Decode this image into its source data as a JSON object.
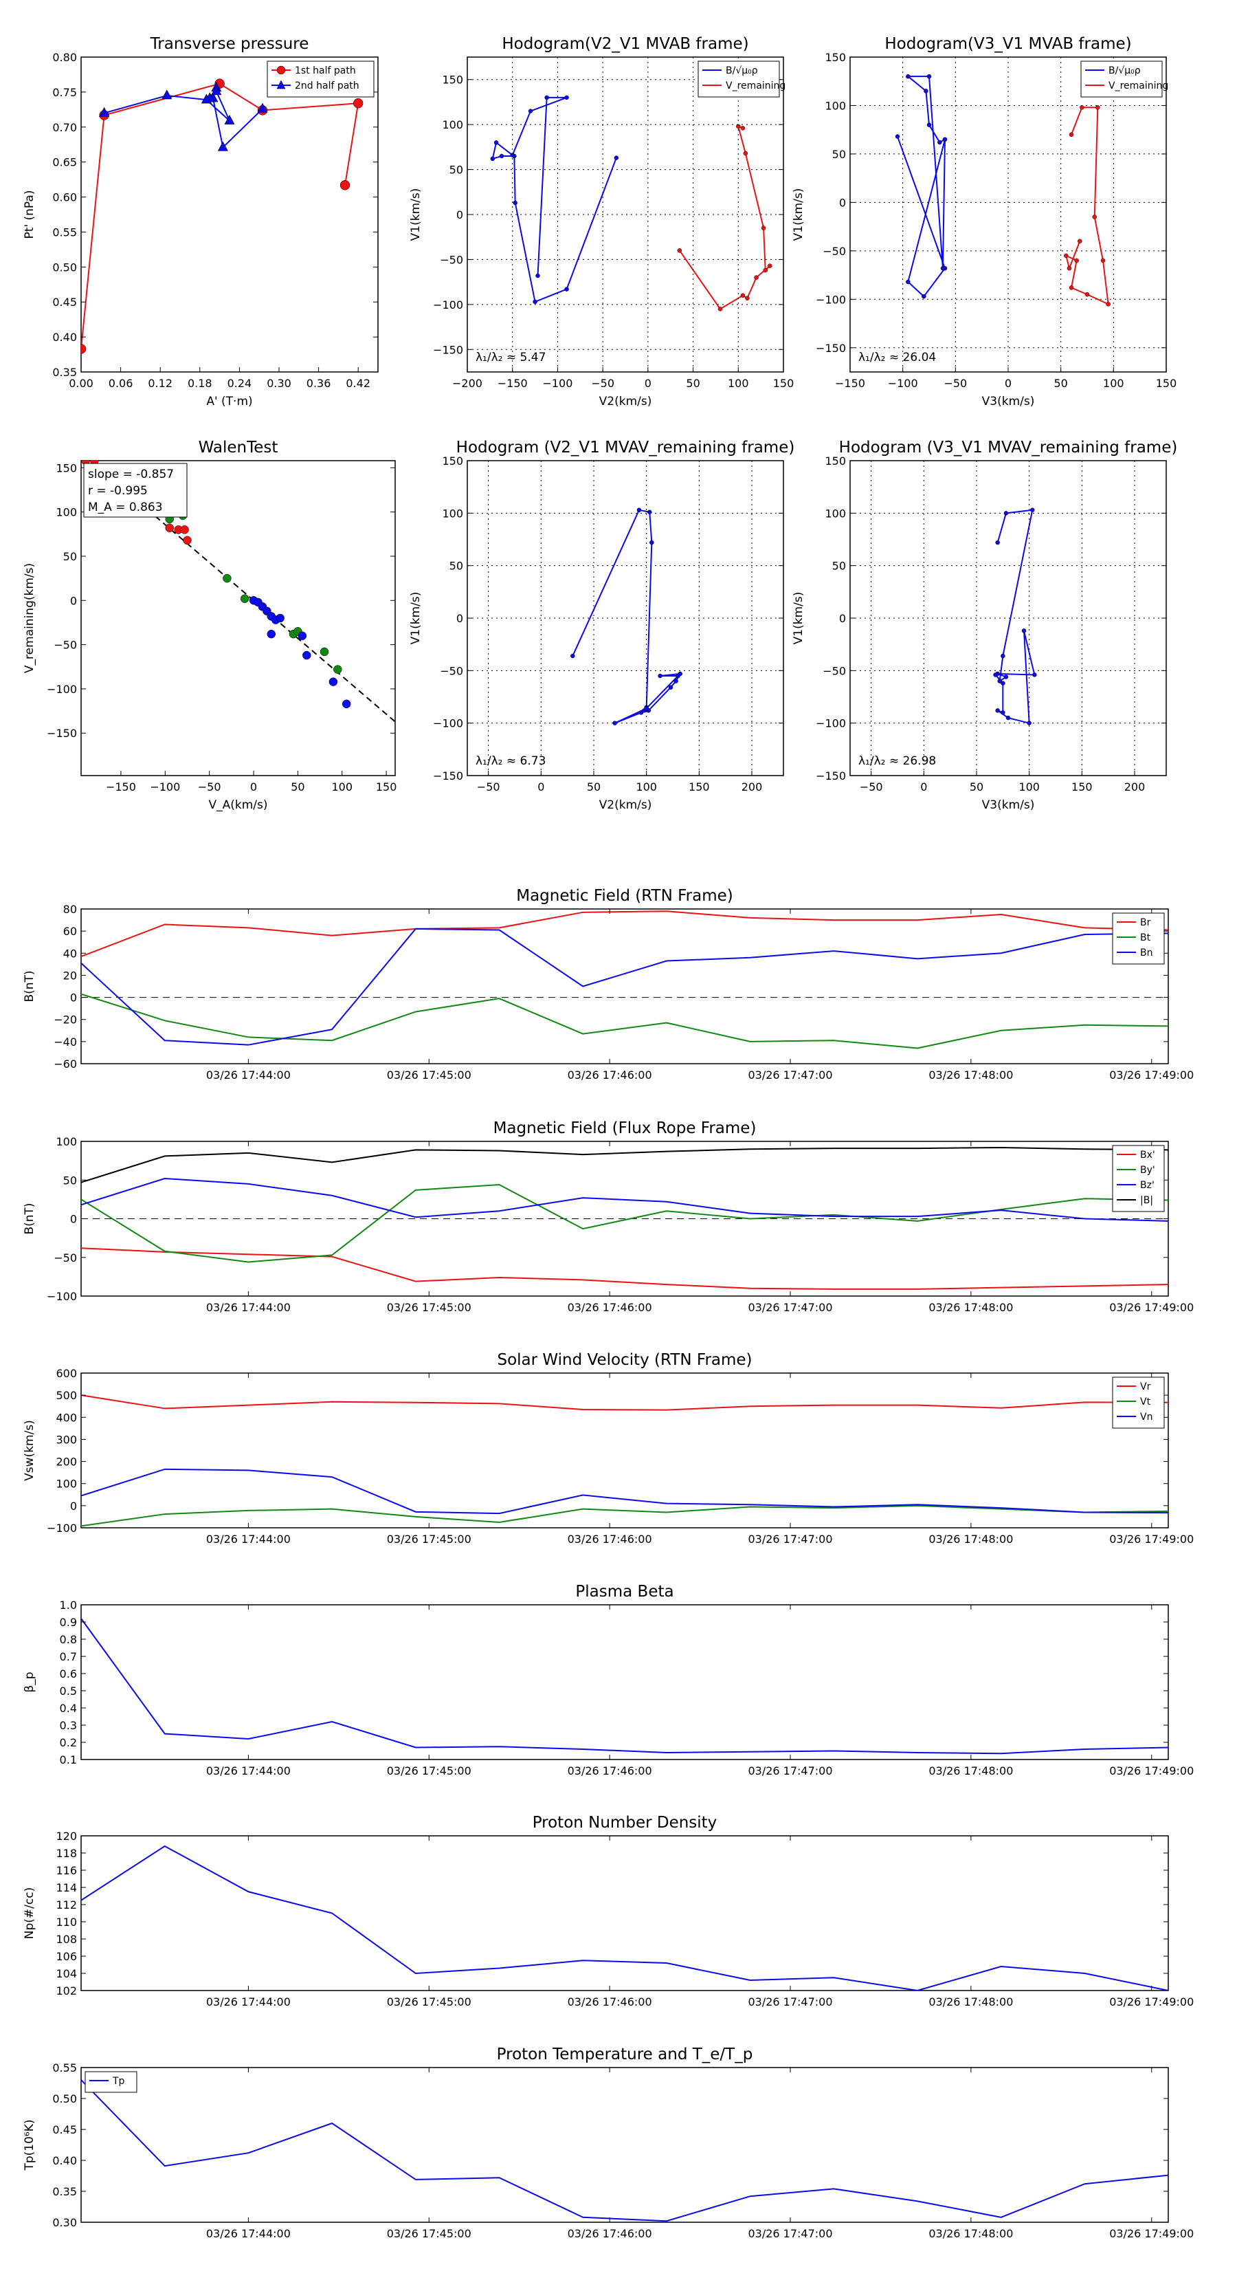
{
  "colors": {
    "red": "#ee1111",
    "blue": "#0a0aee",
    "green": "#118811",
    "black": "#000000"
  },
  "time_ticks": [
    "03/26 17:44:00",
    "03/26 17:45:00",
    "03/26 17:46:00",
    "03/26 17:47:00",
    "03/26 17:48:00",
    "03/26 17:49:00"
  ],
  "chart_data": [
    {
      "id": "transverse",
      "type": "line",
      "title": "Transverse pressure",
      "xlabel": "A' (T·m)",
      "ylabel": "Pt' (nPa)",
      "xlim": [
        0,
        0.45
      ],
      "ylim": [
        0.35,
        0.8
      ],
      "xticks": [
        0,
        0.06,
        0.12,
        0.18,
        0.24,
        0.3,
        0.36,
        0.42
      ],
      "xtick_labels": [
        "0.00",
        "0.06",
        "0.12",
        "0.18",
        "0.24",
        "0.30",
        "0.36",
        "0.42"
      ],
      "yticks": [
        0.35,
        0.4,
        0.45,
        0.5,
        0.55,
        0.6,
        0.65,
        0.7,
        0.75,
        0.8
      ],
      "ytick_labels": [
        "0.35",
        "0.40",
        "0.45",
        "0.50",
        "0.55",
        "0.60",
        "0.65",
        "0.70",
        "0.75",
        "0.80"
      ],
      "legend": {
        "position": "top-right",
        "entries": [
          "1st half path",
          "2nd half path"
        ]
      },
      "series": [
        {
          "name": "1st half path",
          "color": "red",
          "marker": "o",
          "x": [
            0.0,
            0.035,
            0.21,
            0.275,
            0.42,
            0.4
          ],
          "y": [
            0.383,
            0.717,
            0.762,
            0.724,
            0.734,
            0.617
          ]
        },
        {
          "name": "2nd half path",
          "color": "blue",
          "marker": "^",
          "x": [
            0.275,
            0.215,
            0.2,
            0.205,
            0.195,
            0.205,
            0.225,
            0.19,
            0.13,
            0.035
          ],
          "y": [
            0.726,
            0.671,
            0.741,
            0.756,
            0.741,
            0.751,
            0.709,
            0.739,
            0.745,
            0.72
          ]
        }
      ]
    },
    {
      "id": "hodo_v2_mvab",
      "type": "line",
      "title": "Hodogram(V2_V1 MVAB frame)",
      "xlabel": "V2(km/s)",
      "ylabel": "V1(km/s)",
      "xlim": [
        -200,
        150
      ],
      "ylim": [
        -175,
        175
      ],
      "xticks": [
        -200,
        -150,
        -100,
        -50,
        0,
        50,
        100,
        150
      ],
      "xtick_labels": [
        "−200",
        "−150",
        "−100",
        "−50",
        "0",
        "50",
        "100",
        "150"
      ],
      "yticks": [
        -150,
        -100,
        -50,
        0,
        50,
        100,
        150
      ],
      "ytick_labels": [
        "−150",
        "−100",
        "−50",
        "0",
        "50",
        "100",
        "150"
      ],
      "legend": {
        "position": "top-right",
        "entries": [
          "B/√μ₀ρ",
          "V_remaining"
        ]
      },
      "annotation": "λ₁/λ₂ ≈ 5.47",
      "series": [
        {
          "name": "B/√μ₀ρ",
          "color": "blue",
          "x": [
            -35,
            -90,
            -125,
            -147,
            -148,
            -162,
            -172,
            -168,
            -150,
            -130,
            -90,
            -112,
            -122
          ],
          "y": [
            63,
            -83,
            -97,
            13,
            65,
            65,
            62,
            80,
            66,
            115,
            130,
            130,
            -68
          ]
        },
        {
          "name": "V_remaining",
          "color": "red",
          "x": [
            35,
            80,
            105,
            110,
            120,
            135,
            130,
            128,
            108,
            100,
            105
          ],
          "y": [
            -40,
            -105,
            -90,
            -93,
            -70,
            -57,
            -62,
            -15,
            68,
            98,
            96
          ]
        }
      ]
    },
    {
      "id": "hodo_v3_mvab",
      "type": "line",
      "title": "Hodogram(V3_V1 MVAB frame)",
      "xlabel": "V3(km/s)",
      "ylabel": "V1(km/s)",
      "xlim": [
        -150,
        150
      ],
      "ylim": [
        -175,
        150
      ],
      "xticks": [
        -150,
        -100,
        -50,
        0,
        50,
        100,
        150
      ],
      "xtick_labels": [
        "−150",
        "−100",
        "−50",
        "0",
        "50",
        "100",
        "150"
      ],
      "yticks": [
        -150,
        -100,
        -50,
        0,
        50,
        100,
        150
      ],
      "ytick_labels": [
        "−150",
        "−100",
        "−50",
        "0",
        "50",
        "100",
        "150"
      ],
      "legend": {
        "position": "top-right",
        "entries": [
          "B/√μ₀ρ",
          "V_remaining"
        ]
      },
      "annotation": "λ₁/λ₂ ≈ 26.04",
      "series": [
        {
          "name": "B/√μ₀ρ",
          "color": "blue",
          "x": [
            -105,
            -60,
            -80,
            -95,
            -60,
            -65,
            -75,
            -78,
            -95,
            -75,
            -62,
            -60
          ],
          "y": [
            68,
            -68,
            -97,
            -82,
            65,
            62,
            80,
            115,
            130,
            130,
            -68,
            65
          ]
        },
        {
          "name": "V_remaining",
          "color": "red",
          "x": [
            60,
            70,
            85,
            82,
            90,
            95,
            75,
            60,
            65,
            55,
            58,
            68
          ],
          "y": [
            70,
            98,
            98,
            -15,
            -60,
            -105,
            -95,
            -88,
            -60,
            -55,
            -68,
            -40
          ]
        }
      ]
    },
    {
      "id": "walen",
      "type": "scatter",
      "title": "WalenTest",
      "xlabel": "V_A(km/s)",
      "ylabel": "V_remaining(km/s)",
      "xlim": [
        -195,
        160
      ],
      "ylim": [
        -198,
        158
      ],
      "xticks": [
        -150,
        -100,
        -50,
        0,
        50,
        100,
        150
      ],
      "xtick_labels": [
        "−150",
        "−100",
        "−50",
        "0",
        "50",
        "100",
        "150"
      ],
      "yticks": [
        -150,
        -100,
        -50,
        0,
        50,
        100,
        150
      ],
      "ytick_labels": [
        "−150",
        "−100",
        "−50",
        "0",
        "50",
        "100",
        "150"
      ],
      "legend_box": [
        "slope = -0.857",
        "r = -0.995",
        "M_A = 0.863"
      ],
      "fit_line": {
        "slope": -0.857,
        "x_range": [
          -120,
          160
        ]
      },
      "series": [
        {
          "name": "red",
          "color": "red",
          "x": [
            -190,
            -180,
            -95,
            -85,
            -78,
            -75
          ],
          "y": [
            158,
            158,
            82,
            80,
            80,
            68
          ]
        },
        {
          "name": "green",
          "color": "green",
          "x": [
            -95,
            -80,
            -30,
            -10,
            45,
            50,
            80,
            95
          ],
          "y": [
            92,
            96,
            25,
            2,
            -38,
            -35,
            -58,
            -78
          ]
        },
        {
          "name": "blue",
          "color": "blue",
          "x": [
            0,
            5,
            10,
            15,
            20,
            25,
            30,
            20,
            55,
            60,
            90,
            105
          ],
          "y": [
            0,
            -2,
            -7,
            -12,
            -18,
            -22,
            -20,
            -38,
            -40,
            -62,
            -92,
            -117
          ]
        }
      ]
    },
    {
      "id": "hodo_v2_mvav",
      "type": "line",
      "title": "Hodogram (V2_V1 MVAV_remaining frame)",
      "xlabel": "V2(km/s)",
      "ylabel": "V1(km/s)",
      "xlim": [
        -70,
        230
      ],
      "ylim": [
        -150,
        150
      ],
      "xticks": [
        -50,
        0,
        50,
        100,
        150,
        200
      ],
      "xtick_labels": [
        "−50",
        "0",
        "50",
        "100",
        "150",
        "200"
      ],
      "yticks": [
        -150,
        -100,
        -50,
        0,
        50,
        100,
        150
      ],
      "ytick_labels": [
        "−150",
        "−100",
        "−50",
        "0",
        "50",
        "100",
        "150"
      ],
      "annotation": "λ₁/λ₂ ≈ 6.73",
      "series": [
        {
          "name": "B",
          "color": "blue",
          "x": [
            30,
            93,
            103,
            105,
            100,
            98,
            130,
            113,
            132,
            128,
            123,
            102,
            100,
            70,
            95
          ],
          "y": [
            -36,
            103,
            101,
            72,
            -85,
            -88,
            -55,
            -55,
            -53,
            -60,
            -66,
            -88,
            -86,
            -100,
            -90
          ]
        }
      ]
    },
    {
      "id": "hodo_v3_mvav",
      "type": "line",
      "title": "Hodogram (V3_V1 MVAV_remaining frame)",
      "xlabel": "V3(km/s)",
      "ylabel": "V1(km/s)",
      "xlim": [
        -70,
        230
      ],
      "ylim": [
        -150,
        150
      ],
      "xticks": [
        -50,
        0,
        50,
        100,
        150,
        200
      ],
      "xtick_labels": [
        "−50",
        "0",
        "50",
        "100",
        "150",
        "200"
      ],
      "yticks": [
        -150,
        -100,
        -50,
        0,
        50,
        100,
        150
      ],
      "ytick_labels": [
        "−150",
        "−100",
        "−50",
        "0",
        "50",
        "100",
        "150"
      ],
      "annotation": "λ₁/λ₂ ≈ 26.98",
      "series": [
        {
          "name": "B",
          "color": "blue",
          "x": [
            70,
            78,
            103,
            75,
            72,
            78,
            70,
            105,
            95,
            100,
            80,
            70,
            75,
            75,
            68
          ],
          "y": [
            72,
            100,
            103,
            -36,
            -60,
            -56,
            -53,
            -54,
            -12,
            -100,
            -95,
            -88,
            -90,
            -62,
            -54
          ]
        }
      ]
    },
    {
      "id": "mag_rtn",
      "type": "line",
      "title": "Magnetic Field (RTN Frame)",
      "ylabel": "B(nT)",
      "ylim": [
        -60,
        80
      ],
      "yticks": [
        -60,
        -40,
        -20,
        0,
        20,
        40,
        60,
        80
      ],
      "ytick_labels": [
        "−60",
        "−40",
        "−20",
        "0",
        "20",
        "40",
        "60",
        "80"
      ],
      "zero_line": true,
      "legend": {
        "position": "top-right",
        "entries": [
          "Br",
          "Bt",
          "Bn"
        ]
      },
      "series": [
        {
          "name": "Br",
          "color": "red",
          "values": [
            37,
            66,
            63,
            56,
            62,
            63,
            77,
            78,
            72,
            70,
            70,
            75,
            63,
            61
          ]
        },
        {
          "name": "Bt",
          "color": "green",
          "values": [
            3,
            -21,
            -36,
            -39,
            -13,
            -1,
            -33,
            -23,
            -40,
            -39,
            -46,
            -30,
            -25,
            -26
          ]
        },
        {
          "name": "Bn",
          "color": "blue",
          "values": [
            31,
            -39,
            -43,
            -29,
            62,
            61,
            10,
            33,
            36,
            42,
            35,
            40,
            57,
            58
          ]
        }
      ]
    },
    {
      "id": "mag_fr",
      "type": "line",
      "title": "Magnetic Field (Flux Rope Frame)",
      "ylabel": "B(nT)",
      "ylim": [
        -100,
        100
      ],
      "yticks": [
        -100,
        -50,
        0,
        50,
        100
      ],
      "ytick_labels": [
        "−100",
        "−50",
        "0",
        "50",
        "100"
      ],
      "zero_line": true,
      "legend": {
        "position": "top-right",
        "entries": [
          "Bx'",
          "By'",
          "Bz'",
          "|B|"
        ]
      },
      "series": [
        {
          "name": "Bx'",
          "color": "red",
          "values": [
            -38,
            -43,
            -46,
            -49,
            -81,
            -76,
            -79,
            -85,
            -90,
            -91,
            -91,
            -89,
            -87,
            -85
          ]
        },
        {
          "name": "By'",
          "color": "green",
          "values": [
            25,
            -42,
            -56,
            -47,
            37,
            44,
            -13,
            10,
            0,
            5,
            -3,
            12,
            26,
            24
          ]
        },
        {
          "name": "Bz'",
          "color": "blue",
          "values": [
            18,
            52,
            45,
            30,
            2,
            10,
            27,
            22,
            7,
            3,
            3,
            11,
            0,
            -3
          ]
        },
        {
          "name": "|B|",
          "color": "black",
          "values": [
            47,
            81,
            85,
            73,
            89,
            88,
            83,
            87,
            90,
            91,
            91,
            92,
            90,
            89
          ]
        }
      ]
    },
    {
      "id": "velocity",
      "type": "line",
      "title": "Solar Wind Velocity (RTN Frame)",
      "ylabel": "Vsw(km/s)",
      "ylim": [
        -100,
        600
      ],
      "yticks": [
        -100,
        0,
        100,
        200,
        300,
        400,
        500,
        600
      ],
      "ytick_labels": [
        "−100",
        "0",
        "100",
        "200",
        "300",
        "400",
        "500",
        "600"
      ],
      "legend": {
        "position": "top-right",
        "entries": [
          "Vr",
          "Vt",
          "Vn"
        ]
      },
      "series": [
        {
          "name": "Vr",
          "color": "red",
          "values": [
            500,
            440,
            455,
            470,
            467,
            462,
            435,
            433,
            450,
            455,
            455,
            442,
            468,
            467
          ]
        },
        {
          "name": "Vt",
          "color": "green",
          "values": [
            -92,
            -38,
            -22,
            -15,
            -50,
            -75,
            -15,
            -30,
            -5,
            -10,
            0,
            -15,
            -30,
            -25
          ]
        },
        {
          "name": "Vn",
          "color": "blue",
          "values": [
            45,
            165,
            160,
            130,
            -28,
            -35,
            48,
            10,
            5,
            -5,
            5,
            -10,
            -30,
            -32
          ]
        }
      ]
    },
    {
      "id": "beta",
      "type": "line",
      "title": "Plasma Beta",
      "ylabel": "β_p",
      "ylim": [
        0.1,
        1.0
      ],
      "yticks": [
        0.1,
        0.2,
        0.3,
        0.4,
        0.5,
        0.6,
        0.7,
        0.8,
        0.9,
        1.0
      ],
      "ytick_labels": [
        "0.1",
        "0.2",
        "0.3",
        "0.4",
        "0.5",
        "0.6",
        "0.7",
        "0.8",
        "0.9",
        "1.0"
      ],
      "series": [
        {
          "name": "beta",
          "color": "blue",
          "values": [
            0.92,
            0.25,
            0.22,
            0.32,
            0.17,
            0.175,
            0.16,
            0.14,
            0.145,
            0.15,
            0.14,
            0.135,
            0.16,
            0.17
          ]
        }
      ]
    },
    {
      "id": "density",
      "type": "line",
      "title": "Proton Number Density",
      "ylabel": "Np(#/cc)",
      "ylim": [
        102,
        120
      ],
      "yticks": [
        102,
        104,
        106,
        108,
        110,
        112,
        114,
        116,
        118,
        120
      ],
      "ytick_labels": [
        "102",
        "104",
        "106",
        "108",
        "110",
        "112",
        "114",
        "116",
        "118",
        "120"
      ],
      "series": [
        {
          "name": "Np",
          "color": "blue",
          "values": [
            112.5,
            118.8,
            113.5,
            111,
            104,
            104.6,
            105.5,
            105.2,
            103.2,
            103.5,
            102,
            104.8,
            104,
            102
          ]
        }
      ]
    },
    {
      "id": "temperature",
      "type": "line",
      "title": "Proton Temperature and T_e/T_p",
      "ylabel": "Tp(10⁶K)",
      "ylim": [
        0.3,
        0.55
      ],
      "yticks": [
        0.3,
        0.35,
        0.4,
        0.45,
        0.5,
        0.55
      ],
      "ytick_labels": [
        "0.30",
        "0.35",
        "0.40",
        "0.45",
        "0.50",
        "0.55"
      ],
      "legend": {
        "position": "top-left",
        "entries": [
          "Tp"
        ]
      },
      "series": [
        {
          "name": "Tp",
          "color": "blue",
          "values": [
            0.53,
            0.391,
            0.412,
            0.46,
            0.369,
            0.372,
            0.308,
            0.302,
            0.342,
            0.354,
            0.334,
            0.308,
            0.362,
            0.376
          ]
        }
      ]
    }
  ]
}
